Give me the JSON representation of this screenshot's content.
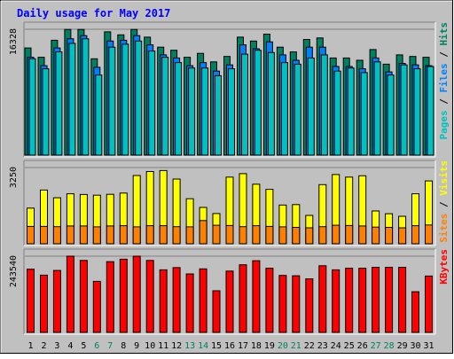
{
  "chart_data": {
    "type": "bar",
    "title": "Daily usage for May 2017",
    "categories": [
      "1",
      "2",
      "3",
      "4",
      "5",
      "6",
      "7",
      "8",
      "9",
      "10",
      "11",
      "12",
      "13",
      "14",
      "15",
      "16",
      "17",
      "18",
      "19",
      "20",
      "21",
      "22",
      "23",
      "24",
      "25",
      "26",
      "27",
      "28",
      "29",
      "30",
      "31"
    ],
    "weekend_days": [
      "6",
      "7",
      "13",
      "14",
      "20",
      "21",
      "27",
      "28"
    ],
    "panels": [
      {
        "name": "hits-files-pages",
        "y_max_label": "16328",
        "ymax": 16328,
        "legend": [
          {
            "text": "Pages",
            "color": "#00c0c0"
          },
          {
            "text": " / ",
            "color": "#000000"
          },
          {
            "text": "Files",
            "color": "#0080ff"
          },
          {
            "text": " / ",
            "color": "#000000"
          },
          {
            "text": "Hits",
            "color": "#008060"
          }
        ],
        "series": [
          {
            "name": "Hits",
            "color": "#008060",
            "values": [
              13900,
              12700,
              14900,
              16300,
              16300,
              12500,
              16000,
              15600,
              16300,
              15300,
              14000,
              13600,
              12700,
              13200,
              12100,
              12800,
              15300,
              14800,
              15700,
              14000,
              13400,
              15000,
              15200,
              12600,
              12600,
              12300,
              13700,
              11800,
              13000,
              12800,
              12700
            ]
          },
          {
            "name": "Files",
            "color": "#0080ff",
            "values": [
              12700,
              11600,
              13900,
              15100,
              15500,
              11400,
              14800,
              14900,
              15500,
              14300,
              13000,
              12600,
              11600,
              12000,
              10900,
              11700,
              14300,
              13800,
              14700,
              13000,
              12300,
              14000,
              14000,
              11500,
              11500,
              11200,
              12600,
              10800,
              11900,
              11700,
              11600
            ]
          },
          {
            "name": "Pages",
            "color": "#00c0c0",
            "values": [
              12500,
              11200,
              13400,
              14500,
              15100,
              10400,
              14000,
              14400,
              14800,
              13500,
              12700,
              12000,
              11300,
              11300,
              10300,
              11200,
              13100,
              13600,
              13300,
              12000,
              11800,
              12600,
              13000,
              10900,
              11300,
              10700,
              12100,
              10400,
              11700,
              11200,
              11500
            ]
          }
        ]
      },
      {
        "name": "visits-sites",
        "y_max_label": "3250",
        "ymax": 3250,
        "legend": [
          {
            "text": "Sites",
            "color": "#ff8000"
          },
          {
            "text": " / ",
            "color": "#000000"
          },
          {
            "text": "Visits",
            "color": "#ffff00"
          }
        ],
        "series": [
          {
            "name": "Visits",
            "color": "#ffff00",
            "values": [
              1520,
              2290,
              1960,
              2130,
              2100,
              2070,
              2110,
              2160,
              2910,
              3080,
              3120,
              2760,
              1920,
              1550,
              1290,
              2840,
              2990,
              2540,
              2320,
              1650,
              1670,
              1210,
              2520,
              2950,
              2840,
              2900,
              1400,
              1280,
              1170,
              2130,
              2680
            ]
          },
          {
            "name": "Sites",
            "color": "#ff8000",
            "values": [
              740,
              740,
              730,
              760,
              760,
              720,
              760,
              770,
              720,
              770,
              770,
              730,
              720,
              990,
              790,
              780,
              730,
              770,
              740,
              720,
              700,
              680,
              730,
              790,
              780,
              760,
              710,
              700,
              680,
              770,
              800
            ]
          }
        ]
      },
      {
        "name": "kbytes",
        "y_max_label": "243540",
        "ymax": 243540,
        "legend": [
          {
            "text": "KBytes",
            "color": "#ff0000"
          }
        ],
        "series": [
          {
            "name": "KBytes",
            "color": "#ff0000",
            "values": [
              202000,
              183000,
              198000,
              243540,
              230000,
              163000,
              226000,
              234000,
              243540,
              230000,
              200000,
              207000,
              187000,
              203000,
              133000,
              196000,
              216000,
              229000,
              205000,
              182000,
              181000,
              171000,
              213000,
              200000,
              205000,
              205000,
              208000,
              208000,
              208000,
              130000,
              180000
            ]
          }
        ]
      }
    ]
  }
}
